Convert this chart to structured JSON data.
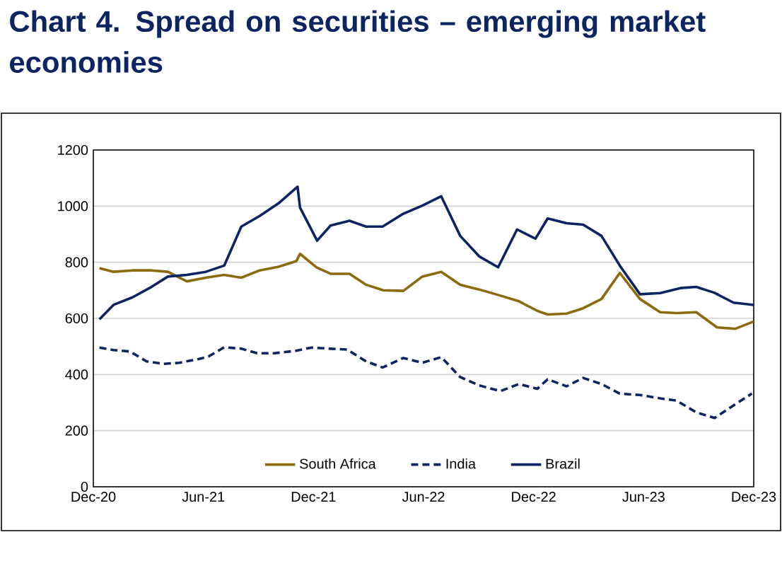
{
  "chart_data": {
    "type": "line",
    "title": "Chart 4. Spread on securities – emerging market economies",
    "xlim": [
      "2020-12",
      "2023-12"
    ],
    "xticks": [
      {
        "value": "2020-12",
        "label": "Dec-20"
      },
      {
        "value": "2021-06",
        "label": "Jun-21"
      },
      {
        "value": "2021-12",
        "label": "Dec-21"
      },
      {
        "value": "2022-06",
        "label": "Jun-22"
      },
      {
        "value": "2022-12",
        "label": "Dec-22"
      },
      {
        "value": "2023-06",
        "label": "Jun-23"
      },
      {
        "value": "2023-12",
        "label": "Dec-23"
      }
    ],
    "ylim": [
      0,
      1200
    ],
    "yticks": [
      0,
      200,
      400,
      600,
      800,
      1000,
      1200
    ],
    "grid": "y",
    "legend": "bottom",
    "series": [
      {
        "name": "South Africa",
        "color": "#8b6b0e",
        "x": [
          "2020-12-11",
          "2021-01-04",
          "2021-02-05",
          "2021-03-06",
          "2021-04-03",
          "2021-05-04",
          "2021-06-05",
          "2021-07-05",
          "2021-08-03",
          "2021-09-03",
          "2021-10-04",
          "2021-11-03",
          "2021-11-09",
          "2021-12-06",
          "2021-12-29",
          "2022-01-30",
          "2022-02-27",
          "2022-03-25",
          "2022-04-28",
          "2022-05-29",
          "2022-06-30",
          "2022-08-01",
          "2022-09-02",
          "2022-10-07",
          "2022-11-07",
          "2022-12-07",
          "2022-12-24",
          "2023-01-25",
          "2023-02-22",
          "2023-03-22",
          "2023-04-22",
          "2023-05-25",
          "2023-06-28",
          "2023-07-25",
          "2023-08-27",
          "2023-10-01",
          "2023-11-01",
          "2023-12-01"
        ],
        "values": [
          779,
          766,
          771,
          771,
          766,
          732,
          745,
          755,
          745,
          771,
          784,
          804,
          830,
          782,
          759,
          759,
          720,
          700,
          698,
          749,
          766,
          720,
          703,
          681,
          661,
          627,
          614,
          617,
          636,
          669,
          762,
          669,
          622,
          619,
          622,
          568,
          563,
          589
        ]
      },
      {
        "name": "India",
        "color": "#0c2461",
        "line_style": "dashed",
        "x": [
          "2020-12-11",
          "2021-01-04",
          "2021-02-01",
          "2021-02-28",
          "2021-03-25",
          "2021-04-22",
          "2021-05-23",
          "2021-06-09",
          "2021-07-05",
          "2021-08-03",
          "2021-08-29",
          "2021-09-27",
          "2021-11-01",
          "2021-11-28",
          "2021-12-29",
          "2022-01-26",
          "2022-02-27",
          "2022-03-24",
          "2022-04-28",
          "2022-05-29",
          "2022-06-30",
          "2022-08-01",
          "2022-09-02",
          "2022-10-07",
          "2022-11-07",
          "2022-12-07",
          "2022-12-24",
          "2023-01-25",
          "2023-02-22",
          "2023-03-22",
          "2023-04-22",
          "2023-05-25",
          "2023-06-28",
          "2023-07-25",
          "2023-08-27",
          "2023-09-27",
          "2023-10-28",
          "2023-11-28"
        ],
        "values": [
          496,
          487,
          482,
          447,
          438,
          442,
          455,
          464,
          497,
          492,
          476,
          476,
          484,
          496,
          492,
          489,
          447,
          425,
          459,
          442,
          462,
          391,
          361,
          341,
          366,
          349,
          383,
          358,
          388,
          366,
          332,
          327,
          315,
          307,
          265,
          245,
          290,
          332
        ]
      },
      {
        "name": "Brazil",
        "color": "#0c2461",
        "x": [
          "2020-12-11",
          "2021-01-04",
          "2021-02-05",
          "2021-03-06",
          "2021-04-03",
          "2021-05-04",
          "2021-06-05",
          "2021-07-05",
          "2021-08-03",
          "2021-09-03",
          "2021-10-04",
          "2021-11-05",
          "2021-11-09",
          "2021-12-07",
          "2021-12-29",
          "2022-01-30",
          "2022-02-27",
          "2022-03-24",
          "2022-04-28",
          "2022-05-29",
          "2022-06-30",
          "2022-08-01",
          "2022-09-02",
          "2022-10-03",
          "2022-11-04",
          "2022-12-04",
          "2022-12-24",
          "2023-01-25",
          "2023-02-22",
          "2023-03-22",
          "2023-04-22",
          "2023-05-25",
          "2023-06-28",
          "2023-08-01",
          "2023-08-27",
          "2023-09-27",
          "2023-10-28",
          "2023-12-01"
        ],
        "values": [
          597,
          648,
          675,
          712,
          749,
          755,
          766,
          788,
          927,
          965,
          1010,
          1069,
          995,
          877,
          931,
          948,
          927,
          927,
          973,
          1002,
          1035,
          894,
          821,
          782,
          917,
          884,
          956,
          939,
          934,
          894,
          788,
          686,
          690,
          708,
          712,
          691,
          656,
          648
        ]
      }
    ]
  }
}
